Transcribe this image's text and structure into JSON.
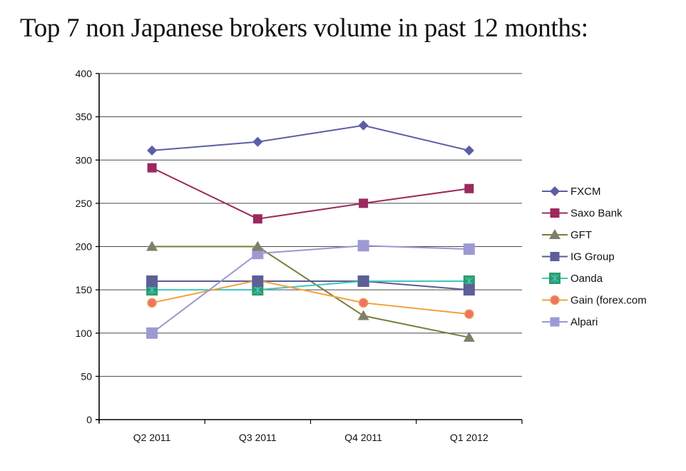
{
  "page": {
    "title": "Top 7 non Japanese brokers volume in past 12 months:"
  },
  "chart_data": {
    "type": "line",
    "title": "Top 7 non Japanese brokers volume in past 12 months:",
    "xlabel": "",
    "ylabel": "",
    "categories": [
      "Q2 2011",
      "Q3 2011",
      "Q4 2011",
      "Q1 2012"
    ],
    "ylim": [
      0,
      400
    ],
    "yticks": [
      0,
      50,
      100,
      150,
      200,
      250,
      300,
      350,
      400
    ],
    "grid": true,
    "legend_position": "right",
    "series": [
      {
        "name": "FXCM",
        "values": [
          311,
          321,
          340,
          311
        ],
        "color": "#5b5ea6",
        "marker": "diamond"
      },
      {
        "name": "Saxo Bank",
        "values": [
          291,
          232,
          250,
          267
        ],
        "color": "#9c2a5e",
        "marker": "square"
      },
      {
        "name": "GFT",
        "values": [
          200,
          200,
          120,
          95
        ],
        "color": "#7c7d3a",
        "marker": "triangle",
        "marker_color": "#7f7f6a"
      },
      {
        "name": "IG Group",
        "values": [
          160,
          160,
          160,
          150
        ],
        "color": "#5a5d95",
        "marker": "square-large",
        "marker_color": "#5d5f97"
      },
      {
        "name": "Oanda",
        "values": [
          150,
          150,
          160,
          160
        ],
        "color": "#3cc8c0",
        "marker": "star-square",
        "marker_color": "#2e9a6a"
      },
      {
        "name": "Gain (forex.com",
        "values": [
          135,
          161,
          135,
          122
        ],
        "color": "#f3a03a",
        "marker": "circle",
        "marker_color": "#ec7270"
      },
      {
        "name": "Alpari",
        "values": [
          100,
          192,
          201,
          197
        ],
        "color": "#9a98d0",
        "marker": "square-large",
        "marker_color": "#9d9ad3"
      }
    ]
  }
}
